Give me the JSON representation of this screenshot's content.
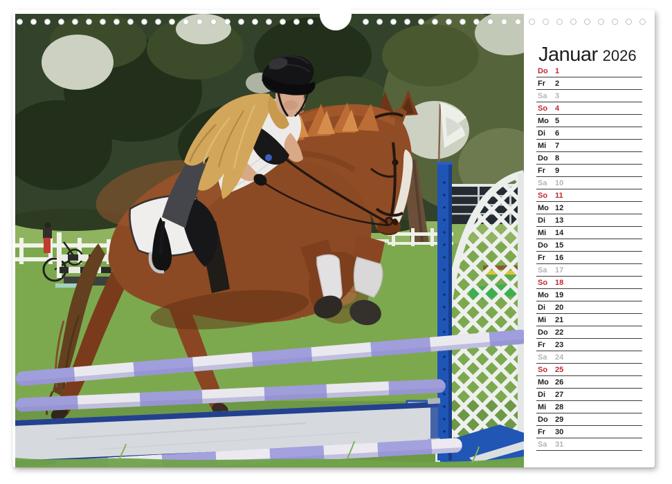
{
  "calendar_page": {
    "title": {
      "month": "Januar",
      "year": "2026"
    },
    "colors": {
      "weekday": "#1d1d1b",
      "saturday": "#b4b4b4",
      "sunday_holiday": "#c1272d",
      "row_line": "#3b3b3b",
      "page_bg": "#ffffff",
      "jump_blue": "#1f55b5",
      "pole_lavender": "#a09edd"
    },
    "photo": {
      "description": "Young rider in white shirt and black helmet on a chestnut horse jumping a blue and white fence at an outdoor horse show"
    },
    "days": [
      {
        "abbr": "Do",
        "num": "1",
        "type": "holiday"
      },
      {
        "abbr": "Fr",
        "num": "2",
        "type": "weekday"
      },
      {
        "abbr": "Sa",
        "num": "3",
        "type": "saturday"
      },
      {
        "abbr": "So",
        "num": "4",
        "type": "sunday"
      },
      {
        "abbr": "Mo",
        "num": "5",
        "type": "weekday"
      },
      {
        "abbr": "Di",
        "num": "6",
        "type": "weekday"
      },
      {
        "abbr": "Mi",
        "num": "7",
        "type": "weekday"
      },
      {
        "abbr": "Do",
        "num": "8",
        "type": "weekday"
      },
      {
        "abbr": "Fr",
        "num": "9",
        "type": "weekday"
      },
      {
        "abbr": "Sa",
        "num": "10",
        "type": "saturday"
      },
      {
        "abbr": "So",
        "num": "11",
        "type": "sunday"
      },
      {
        "abbr": "Mo",
        "num": "12",
        "type": "weekday"
      },
      {
        "abbr": "Di",
        "num": "13",
        "type": "weekday"
      },
      {
        "abbr": "Mi",
        "num": "14",
        "type": "weekday"
      },
      {
        "abbr": "Do",
        "num": "15",
        "type": "weekday"
      },
      {
        "abbr": "Fr",
        "num": "16",
        "type": "weekday"
      },
      {
        "abbr": "Sa",
        "num": "17",
        "type": "saturday"
      },
      {
        "abbr": "So",
        "num": "18",
        "type": "sunday"
      },
      {
        "abbr": "Mo",
        "num": "19",
        "type": "weekday"
      },
      {
        "abbr": "Di",
        "num": "20",
        "type": "weekday"
      },
      {
        "abbr": "Mi",
        "num": "21",
        "type": "weekday"
      },
      {
        "abbr": "Do",
        "num": "22",
        "type": "weekday"
      },
      {
        "abbr": "Fr",
        "num": "23",
        "type": "weekday"
      },
      {
        "abbr": "Sa",
        "num": "24",
        "type": "saturday"
      },
      {
        "abbr": "So",
        "num": "25",
        "type": "sunday"
      },
      {
        "abbr": "Mo",
        "num": "26",
        "type": "weekday"
      },
      {
        "abbr": "Di",
        "num": "27",
        "type": "weekday"
      },
      {
        "abbr": "Mi",
        "num": "28",
        "type": "weekday"
      },
      {
        "abbr": "Do",
        "num": "29",
        "type": "weekday"
      },
      {
        "abbr": "Fr",
        "num": "30",
        "type": "weekday"
      },
      {
        "abbr": "Sa",
        "num": "31",
        "type": "saturday"
      }
    ]
  }
}
